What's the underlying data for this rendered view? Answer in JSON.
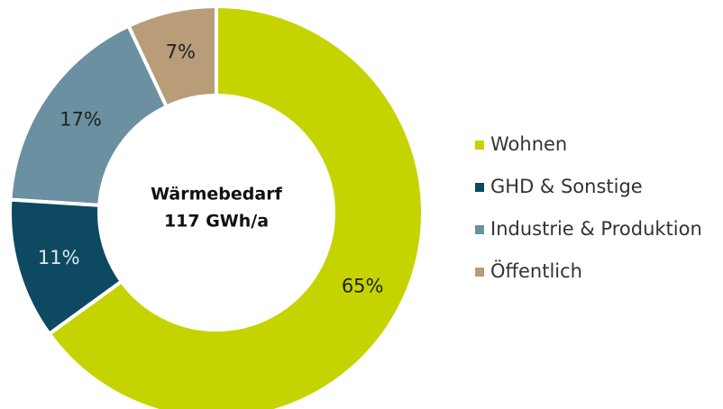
{
  "chart_data": {
    "type": "donut",
    "center_label": [
      "Wärmebedarf",
      "117 GWh/a"
    ],
    "categories": [
      "Wohnen",
      "GHD & Sonstige",
      "Industrie & Produktion",
      "Öffentlich"
    ],
    "values": [
      65,
      11,
      17,
      7
    ],
    "value_labels": [
      "65%",
      "11%",
      "17%",
      "7%"
    ],
    "colors": [
      "#c5d400",
      "#0d4a62",
      "#6b90a1",
      "#b99c78"
    ],
    "legend": "right"
  }
}
